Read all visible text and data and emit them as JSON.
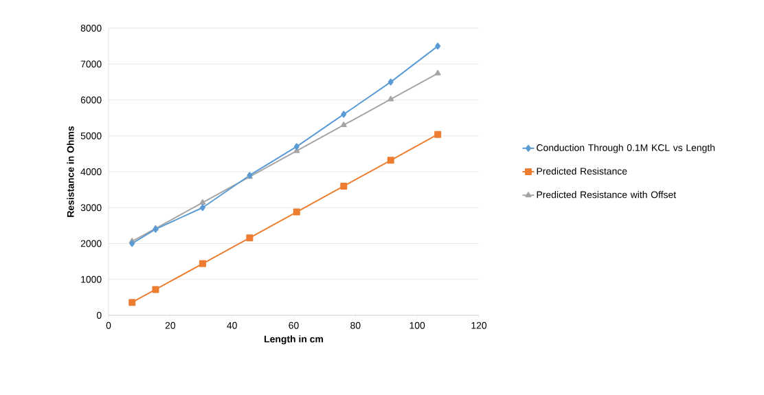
{
  "chart_data": {
    "type": "line",
    "xlabel": "Length in cm",
    "ylabel": "Resistance in Ohms",
    "xlim": [
      0,
      120
    ],
    "xticks": [
      0,
      20,
      40,
      60,
      80,
      100,
      120
    ],
    "ylim": [
      0,
      8000
    ],
    "yticks": [
      0,
      1000,
      2000,
      3000,
      4000,
      5000,
      6000,
      7000,
      8000
    ],
    "grid": "y",
    "legend": "right",
    "line_style": "solid",
    "series": [
      {
        "name": "Conduction Through 0.1M KCL vs Length",
        "color": "#5b9bd5",
        "marker": "diamond",
        "x": [
          7.62,
          15.24,
          30.48,
          45.72,
          60.96,
          76.2,
          91.44,
          106.68
        ],
        "values": [
          2000,
          2400,
          3000,
          3900,
          4700,
          5600,
          6500,
          7500
        ]
      },
      {
        "name": "Predicted Resistance",
        "color": "#ed7d31",
        "marker": "square",
        "x": [
          7.62,
          15.24,
          30.48,
          45.72,
          60.96,
          76.2,
          91.44,
          106.68
        ],
        "values": [
          360,
          720,
          1440,
          2160,
          2880,
          3600,
          4320,
          5040
        ]
      },
      {
        "name": "Predicted Resistance with Offset",
        "color": "#a5a5a5",
        "marker": "triangle",
        "x": [
          7.62,
          15.24,
          30.48,
          45.72,
          60.96,
          76.2,
          91.44,
          106.68
        ],
        "values": [
          2060,
          2420,
          3140,
          3860,
          4580,
          5300,
          6020,
          6740
        ]
      }
    ]
  }
}
